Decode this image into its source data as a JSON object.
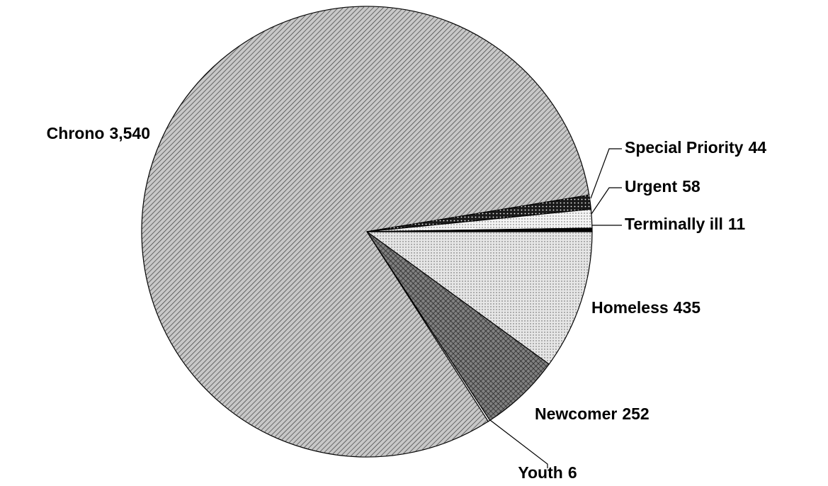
{
  "chart_data": {
    "type": "pie",
    "categories": [
      "Homeless",
      "Newcomer",
      "Youth",
      "Chrono",
      "Special Priority",
      "Urgent",
      "Terminally ill"
    ],
    "values": [
      435,
      252,
      6,
      3540,
      44,
      58,
      11
    ],
    "value_labels": [
      "435",
      "252",
      "6",
      "3,540",
      "44",
      "58",
      "11"
    ],
    "colors": [
      "#e6e6e6",
      "#808080",
      "#ffffff",
      "#c8c8c8",
      "#1a1a1a",
      "#f4f4f4",
      "#000000"
    ]
  }
}
